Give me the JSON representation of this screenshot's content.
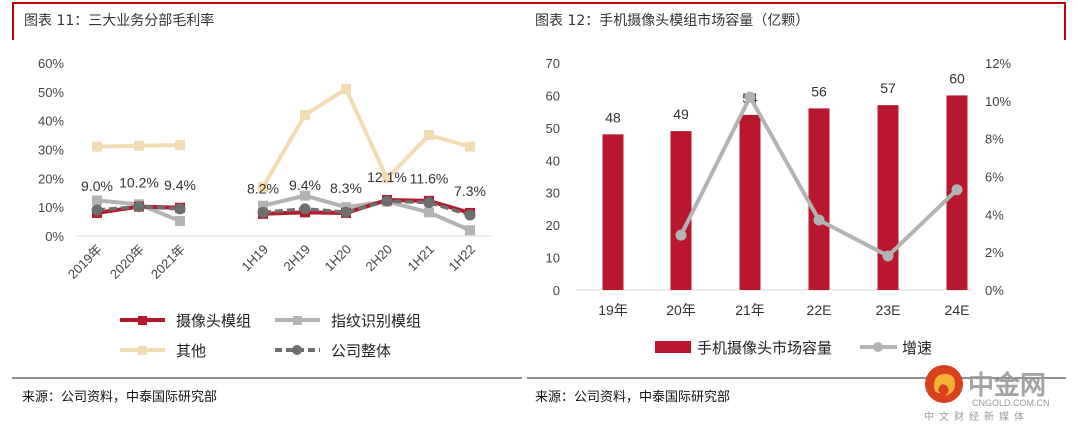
{
  "left": {
    "title": "图表 11：三大业务分部毛利率",
    "source": "来源：公司资料，中泰国际研究部"
  },
  "right": {
    "title": "图表 12：手机摄像头模组市场容量（亿颗）",
    "source": "来源：公司资料，中泰国际研究部"
  },
  "watermark": {
    "name": "中金网",
    "domain": "CNGOLD.COM.CN",
    "tagline": "中文财经新媒体"
  },
  "chart_data": [
    {
      "type": "line",
      "categories": [
        "2019年",
        "2020年",
        "2021年",
        "1H19",
        "2H19",
        "1H20",
        "2H20",
        "1H21",
        "1H22"
      ],
      "yticks": [
        "0%",
        "10%",
        "20%",
        "30%",
        "40%",
        "50%",
        "60%"
      ],
      "ylim": [
        0,
        60
      ],
      "unit": "%",
      "series": [
        {
          "name": "摄像头模组",
          "color": "#b5192c",
          "marker": "square",
          "values": [
            8.0,
            10.2,
            9.8,
            7.7,
            8.2,
            8.0,
            12.5,
            12.2,
            8.0
          ]
        },
        {
          "name": "指纹识别模组",
          "color": "#b3b3b3",
          "marker": "square",
          "values": [
            12.3,
            11.0,
            5.2,
            10.5,
            14.0,
            10.0,
            12.0,
            8.2,
            2.0
          ]
        },
        {
          "name": "其他",
          "color": "#f2dcb4",
          "marker": "square",
          "values": [
            31.0,
            31.3,
            31.5,
            17.0,
            42.0,
            51.0,
            20.0,
            35.0,
            31.0
          ]
        },
        {
          "name": "公司整体",
          "color": "#6e6e6e",
          "marker": "circle",
          "dashed": true,
          "values": [
            9.0,
            10.2,
            9.4,
            8.2,
            9.4,
            8.3,
            12.1,
            11.6,
            7.3
          ],
          "labels": [
            "9.0%",
            "10.2%",
            "9.4%",
            "8.2%",
            "9.4%",
            "8.3%",
            "12.1%",
            "11.6%",
            "7.3%"
          ]
        }
      ],
      "legend": "bottom"
    },
    {
      "type": "bar",
      "categories": [
        "19年",
        "20年",
        "21年",
        "22E",
        "23E",
        "24E"
      ],
      "yticks": [
        "0",
        "10",
        "20",
        "30",
        "40",
        "50",
        "60",
        "70"
      ],
      "ylim": [
        0,
        70
      ],
      "y2ticks": [
        "0%",
        "2%",
        "4%",
        "6%",
        "8%",
        "10%",
        "12%"
      ],
      "y2lim": [
        0,
        12
      ],
      "series": [
        {
          "name": "手机摄像头市场容量",
          "type": "bar",
          "color": "#b8172d",
          "values": [
            48,
            49,
            54,
            56,
            57,
            60
          ],
          "labels": [
            "48",
            "49",
            "54",
            "56",
            "57",
            "60"
          ]
        },
        {
          "name": "增速",
          "type": "line",
          "axis": "right",
          "color": "#b3b3b3",
          "values": [
            null,
            2.9,
            10.2,
            3.7,
            1.8,
            5.3
          ]
        }
      ],
      "legend": "bottom"
    }
  ]
}
